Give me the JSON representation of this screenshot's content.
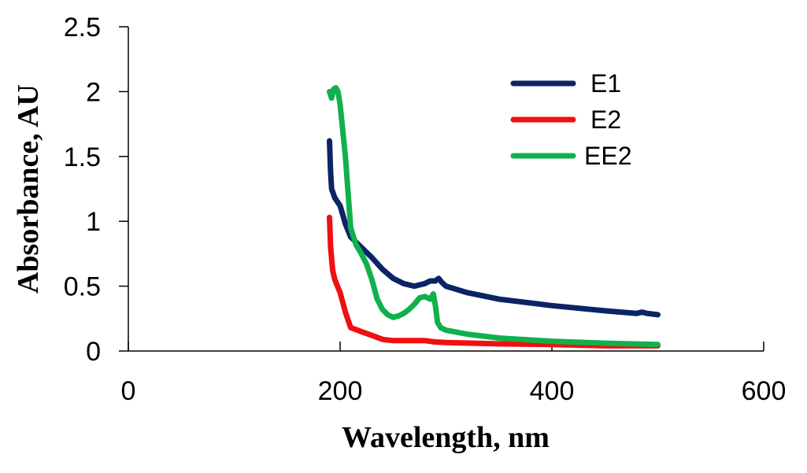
{
  "chart_data": {
    "type": "line",
    "title": "",
    "xlabel": "Wavelength, nm",
    "ylabel": "Absorbance, AU",
    "xlim": [
      0,
      600
    ],
    "ylim": [
      0,
      2.5
    ],
    "x_ticks": [
      0,
      200,
      400,
      600
    ],
    "y_ticks": [
      0,
      0.5,
      1,
      1.5,
      2,
      2.5
    ],
    "x_tick_labels": [
      "0",
      "200",
      "400",
      "600"
    ],
    "y_tick_labels": [
      "0",
      "0.5",
      "1",
      "1.5",
      "2",
      "2.5"
    ],
    "grid": false,
    "legend_position": "top-right",
    "series": [
      {
        "name": "E1",
        "color": "#0b2466",
        "x": [
          190,
          191,
          192,
          195,
          200,
          205,
          210,
          220,
          230,
          240,
          250,
          260,
          270,
          280,
          285,
          290,
          293,
          296,
          300,
          320,
          350,
          400,
          450,
          480,
          485,
          490,
          500
        ],
        "y": [
          1.62,
          1.38,
          1.25,
          1.18,
          1.12,
          0.98,
          0.88,
          0.8,
          0.72,
          0.63,
          0.56,
          0.52,
          0.5,
          0.52,
          0.54,
          0.54,
          0.56,
          0.53,
          0.5,
          0.45,
          0.4,
          0.35,
          0.31,
          0.29,
          0.3,
          0.29,
          0.28
        ]
      },
      {
        "name": "E2",
        "color": "#f01010",
        "x": [
          190,
          191,
          193,
          195,
          200,
          205,
          210,
          220,
          230,
          240,
          250,
          270,
          280,
          290,
          300,
          350,
          400,
          450,
          500
        ],
        "y": [
          1.03,
          0.8,
          0.62,
          0.55,
          0.45,
          0.3,
          0.18,
          0.15,
          0.12,
          0.09,
          0.08,
          0.08,
          0.08,
          0.07,
          0.065,
          0.055,
          0.05,
          0.04,
          0.04
        ]
      },
      {
        "name": "EE2",
        "color": "#11b04c",
        "x": [
          190,
          192,
          194,
          196,
          198,
          200,
          205,
          210,
          215,
          220,
          225,
          230,
          235,
          240,
          245,
          250,
          255,
          260,
          265,
          270,
          275,
          280,
          285,
          288,
          290,
          292,
          295,
          300,
          320,
          350,
          400,
          450,
          500
        ],
        "y": [
          2.0,
          1.95,
          2.02,
          2.03,
          2.0,
          1.9,
          1.5,
          0.95,
          0.82,
          0.75,
          0.67,
          0.55,
          0.4,
          0.32,
          0.28,
          0.26,
          0.27,
          0.29,
          0.32,
          0.36,
          0.41,
          0.42,
          0.4,
          0.44,
          0.35,
          0.22,
          0.18,
          0.16,
          0.13,
          0.1,
          0.075,
          0.06,
          0.05
        ]
      }
    ]
  }
}
